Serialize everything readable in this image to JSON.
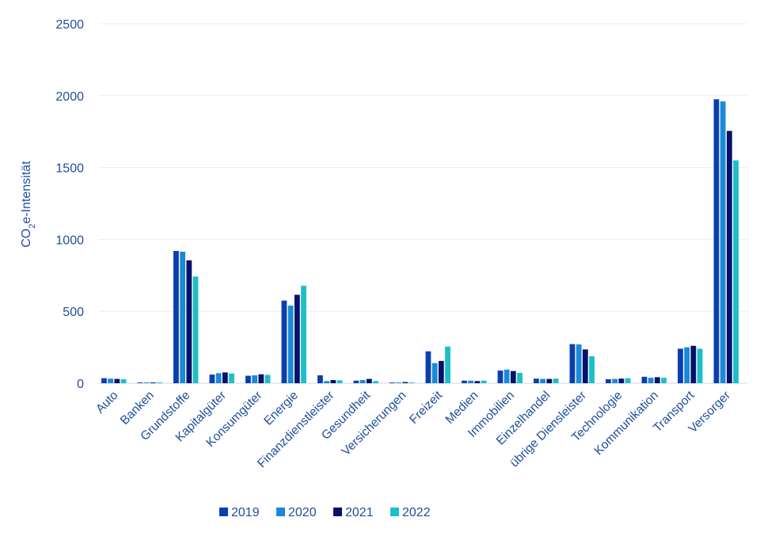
{
  "chart_data": {
    "type": "bar",
    "ylabel_main": "CO",
    "ylabel_sub": "2",
    "ylabel_rest": "e-Intensität",
    "ylim": [
      0,
      2500
    ],
    "yticks": [
      "0",
      "500",
      "1000",
      "1500",
      "2000",
      "2500"
    ],
    "grid": true,
    "legend_position": "bottom",
    "categories": [
      "Auto",
      "Banken",
      "Grundstoffe",
      "Kapitalgüter",
      "Konsumgüter",
      "Energie",
      "Finanzdienstleister",
      "Gesundheit",
      "Versicherungen",
      "Freizeit",
      "Medien",
      "Immobilien",
      "Einzelhandel",
      "übrige Diensleister",
      "Technologie",
      "Kommunikation",
      "Transport",
      "Versorger"
    ],
    "series": [
      {
        "name": "2019",
        "color": "#0a3fb0",
        "values": [
          35,
          5,
          920,
          60,
          52,
          575,
          55,
          18,
          5,
          222,
          18,
          88,
          32,
          272,
          28,
          45,
          240,
          1975
        ]
      },
      {
        "name": "2020",
        "color": "#1a8ad6",
        "values": [
          32,
          5,
          915,
          70,
          55,
          540,
          15,
          22,
          5,
          140,
          18,
          95,
          30,
          270,
          30,
          38,
          250,
          1960
        ]
      },
      {
        "name": "2021",
        "color": "#08126b",
        "values": [
          30,
          5,
          855,
          75,
          62,
          615,
          22,
          30,
          8,
          155,
          15,
          85,
          30,
          235,
          32,
          42,
          260,
          1755
        ]
      },
      {
        "name": "2022",
        "color": "#1bbfc8",
        "values": [
          28,
          5,
          742,
          68,
          58,
          678,
          20,
          15,
          5,
          255,
          18,
          72,
          32,
          188,
          35,
          38,
          240,
          1550
        ]
      }
    ]
  }
}
